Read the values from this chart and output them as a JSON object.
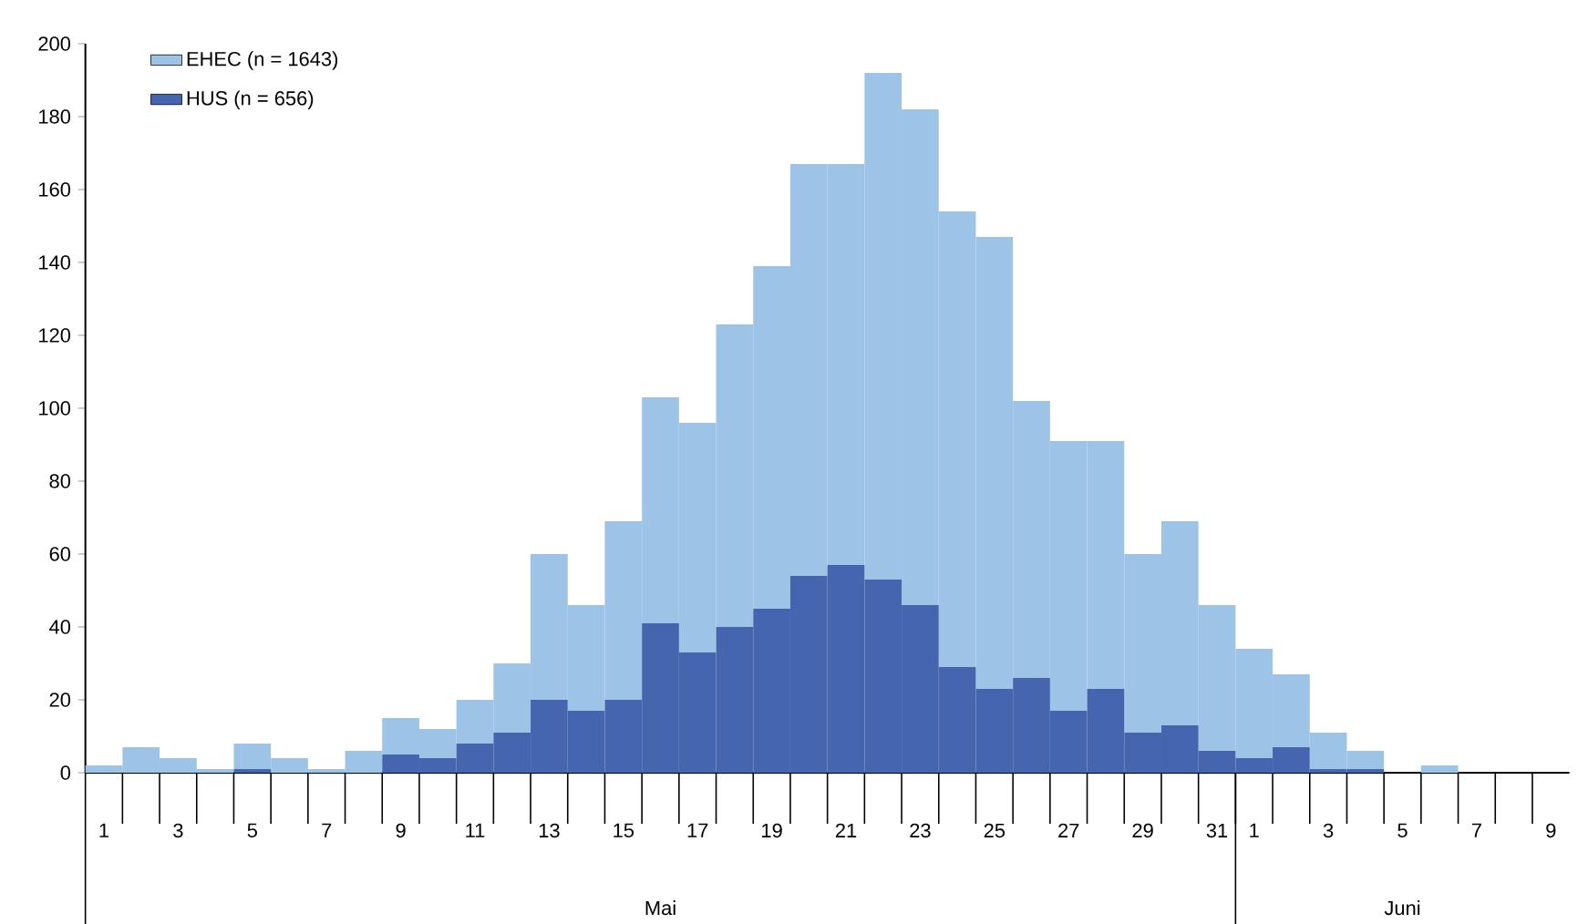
{
  "chart_data": {
    "type": "bar",
    "stacked": true,
    "categories": [
      "1",
      null,
      "3",
      null,
      "5",
      null,
      "7",
      null,
      "9",
      null,
      "11",
      null,
      "13",
      null,
      "15",
      null,
      "17",
      null,
      "19",
      null,
      "21",
      null,
      "23",
      null,
      "25",
      null,
      "27",
      null,
      "29",
      null,
      "31",
      "1",
      null,
      "3",
      null,
      "5",
      null,
      "7",
      null,
      "9"
    ],
    "series": [
      {
        "name": "HUS (n = 656)",
        "color": "#4565ae",
        "values": [
          0,
          0,
          0,
          0,
          1,
          0,
          0,
          0,
          5,
          4,
          8,
          11,
          20,
          17,
          20,
          41,
          33,
          40,
          45,
          54,
          57,
          53,
          46,
          29,
          23,
          26,
          17,
          23,
          11,
          13,
          6,
          4,
          7,
          1,
          1,
          0,
          0,
          0,
          0,
          0
        ]
      },
      {
        "name": "EHEC (n = 1643)",
        "color": "#9dc3e6",
        "values": [
          2,
          7,
          4,
          1,
          7,
          4,
          1,
          6,
          10,
          8,
          12,
          19,
          40,
          29,
          49,
          62,
          63,
          83,
          94,
          113,
          110,
          139,
          136,
          125,
          124,
          76,
          74,
          68,
          49,
          56,
          40,
          30,
          20,
          10,
          5,
          0,
          2,
          0,
          0,
          0
        ]
      }
    ],
    "ylim": [
      0,
      200
    ],
    "yticks": [
      0,
      20,
      40,
      60,
      80,
      100,
      120,
      140,
      160,
      180,
      200
    ],
    "legend": "top left",
    "annotations": [
      "Mai",
      "Juni"
    ]
  }
}
